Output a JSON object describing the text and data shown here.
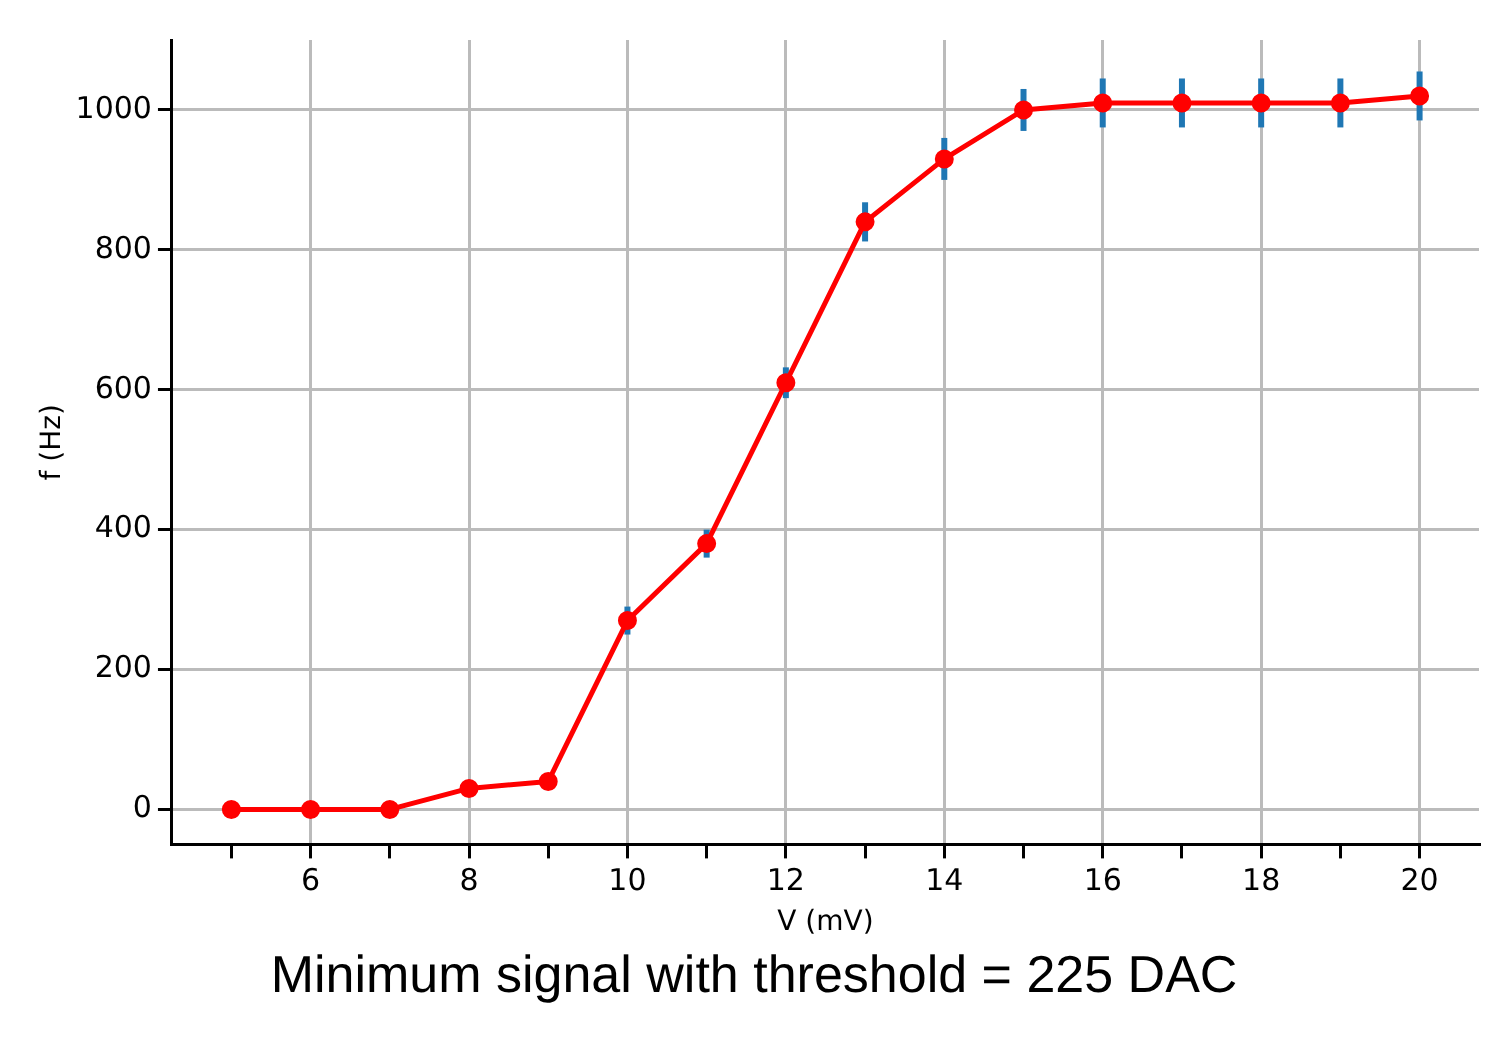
{
  "chart_data": {
    "type": "line",
    "xlabel": "V (mV)",
    "ylabel": "f (Hz)",
    "annotations": [
      "Minimum signal with threshold = 225 DAC"
    ],
    "x": [
      5,
      6,
      7,
      8,
      9,
      10,
      11,
      12,
      13,
      14,
      15,
      16,
      17,
      18,
      19,
      20
    ],
    "series": [
      {
        "color": "#ff0000",
        "values": [
          0,
          0,
          0,
          30,
          40,
          270,
          380,
          610,
          840,
          930,
          1000,
          1010,
          1010,
          1010,
          1010,
          1020
        ],
        "errors": [
          null,
          null,
          null,
          null,
          null,
          20,
          20,
          22,
          28,
          30,
          30,
          35,
          35,
          35,
          35,
          35
        ]
      }
    ],
    "xlim": [
      4.25,
      20.75
    ],
    "xticks": [
      {
        "value": 5,
        "label": null
      },
      6,
      {
        "value": 7,
        "label": null
      },
      8,
      {
        "value": 9,
        "label": null
      },
      10,
      {
        "value": 11,
        "label": null
      },
      12,
      {
        "value": 13,
        "label": null
      },
      14,
      {
        "value": 15,
        "label": null
      },
      16,
      {
        "value": 17,
        "label": null
      },
      18,
      {
        "value": 19,
        "label": null
      },
      20
    ],
    "ylim": [
      -50,
      1100
    ],
    "yticks": [
      0,
      200,
      400,
      600,
      800,
      1000
    ],
    "grid": true,
    "marker": "circle",
    "line_style": "solid"
  }
}
